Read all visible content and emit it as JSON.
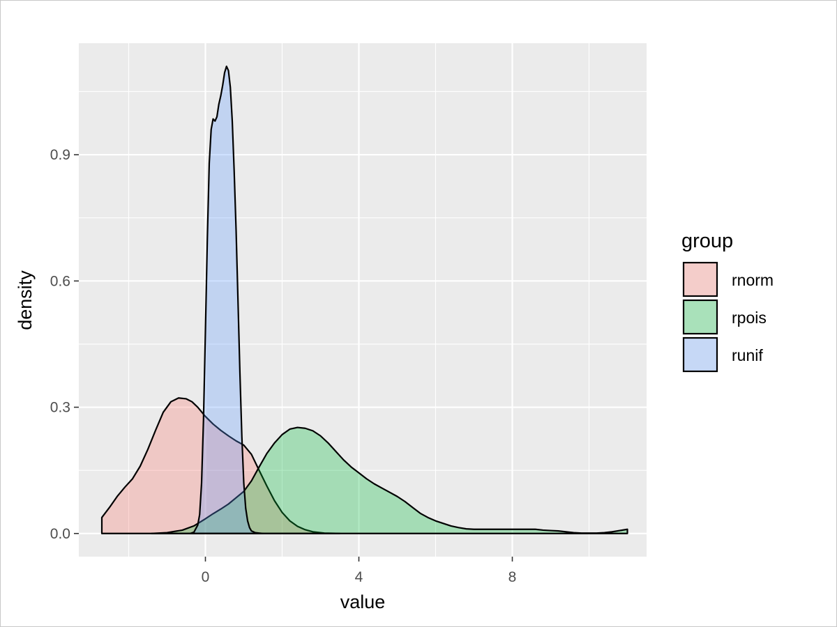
{
  "chart_data": {
    "type": "area",
    "xlabel": "value",
    "ylabel": "density",
    "xlim": [
      -3.3,
      11.5
    ],
    "ylim": [
      -0.055,
      1.165
    ],
    "x_ticks": [
      0,
      4,
      8
    ],
    "x_tick_labels": [
      "0",
      "4",
      "8"
    ],
    "y_ticks": [
      0.0,
      0.3,
      0.6,
      0.9
    ],
    "y_tick_labels": [
      "0.0",
      "0.3",
      "0.6",
      "0.9"
    ],
    "x_minor_ticks": [
      -2,
      2,
      6,
      10
    ],
    "y_minor_ticks": [
      0.15,
      0.45,
      0.75,
      1.05
    ],
    "grid": true,
    "legend": {
      "title": "group",
      "position": "right"
    },
    "series": [
      {
        "name": "rnorm",
        "color": "#F8766D",
        "x": [
          -2.7,
          -2.5,
          -2.3,
          -2.1,
          -1.9,
          -1.7,
          -1.5,
          -1.3,
          -1.1,
          -0.9,
          -0.7,
          -0.5,
          -0.35,
          -0.2,
          0.0,
          0.2,
          0.4,
          0.6,
          0.8,
          1.0,
          1.2,
          1.4,
          1.6,
          1.8,
          2.0,
          2.2,
          2.4,
          2.6,
          2.8,
          3.1,
          3.5
        ],
        "y": [
          0.038,
          0.062,
          0.088,
          0.11,
          0.13,
          0.16,
          0.2,
          0.245,
          0.288,
          0.313,
          0.322,
          0.32,
          0.313,
          0.3,
          0.278,
          0.26,
          0.245,
          0.232,
          0.22,
          0.21,
          0.188,
          0.15,
          0.113,
          0.078,
          0.05,
          0.03,
          0.017,
          0.009,
          0.004,
          0.001,
          0.0
        ]
      },
      {
        "name": "rpois",
        "color": "#00BA38",
        "x": [
          -1.4,
          -1.0,
          -0.6,
          -0.3,
          0.0,
          0.2,
          0.4,
          0.6,
          0.8,
          1.0,
          1.2,
          1.4,
          1.6,
          1.8,
          2.0,
          2.2,
          2.4,
          2.6,
          2.8,
          3.0,
          3.2,
          3.4,
          3.6,
          3.8,
          4.0,
          4.2,
          4.4,
          4.6,
          4.8,
          5.0,
          5.2,
          5.4,
          5.6,
          5.8,
          6.0,
          6.2,
          6.4,
          6.6,
          6.8,
          7.0,
          7.2,
          7.4,
          7.6,
          7.8,
          8.0,
          8.2,
          8.4,
          8.6,
          8.8,
          9.0,
          9.2,
          9.4,
          9.6,
          9.8,
          10.0,
          10.2,
          10.4,
          10.6,
          10.8,
          11.0
        ],
        "y": [
          0.0,
          0.002,
          0.008,
          0.018,
          0.035,
          0.047,
          0.058,
          0.07,
          0.085,
          0.1,
          0.125,
          0.158,
          0.19,
          0.215,
          0.235,
          0.248,
          0.252,
          0.25,
          0.244,
          0.232,
          0.215,
          0.195,
          0.175,
          0.158,
          0.144,
          0.13,
          0.118,
          0.108,
          0.098,
          0.088,
          0.076,
          0.062,
          0.048,
          0.038,
          0.03,
          0.024,
          0.018,
          0.014,
          0.011,
          0.01,
          0.01,
          0.01,
          0.01,
          0.01,
          0.01,
          0.01,
          0.01,
          0.01,
          0.008,
          0.007,
          0.006,
          0.004,
          0.002,
          0.001,
          0.001,
          0.001,
          0.002,
          0.004,
          0.007,
          0.01
        ]
      },
      {
        "name": "runif",
        "color": "#619CFF",
        "x": [
          -0.4,
          -0.3,
          -0.2,
          -0.15,
          -0.1,
          -0.05,
          0.0,
          0.05,
          0.1,
          0.15,
          0.2,
          0.25,
          0.3,
          0.35,
          0.4,
          0.45,
          0.5,
          0.55,
          0.6,
          0.65,
          0.7,
          0.75,
          0.8,
          0.85,
          0.9,
          0.95,
          1.0,
          1.05,
          1.1,
          1.15,
          1.2,
          1.3,
          1.4,
          1.5
        ],
        "y": [
          0.0,
          0.003,
          0.02,
          0.045,
          0.12,
          0.27,
          0.48,
          0.7,
          0.88,
          0.96,
          0.985,
          0.98,
          0.99,
          1.02,
          1.04,
          1.065,
          1.095,
          1.11,
          1.1,
          1.06,
          0.98,
          0.86,
          0.72,
          0.55,
          0.38,
          0.23,
          0.12,
          0.06,
          0.03,
          0.014,
          0.006,
          0.002,
          0.001,
          0.0
        ]
      }
    ]
  }
}
